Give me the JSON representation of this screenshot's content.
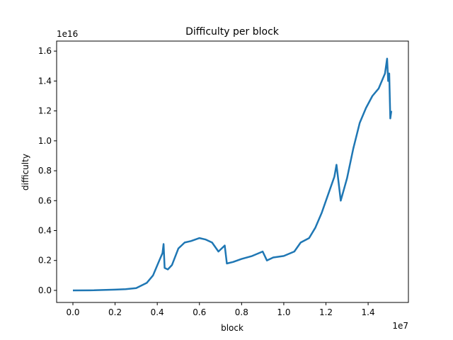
{
  "chart_data": {
    "type": "line",
    "title": "Difficulty per block",
    "x_label": "block",
    "y_label": "difficulty",
    "x_offset_label": "1e7",
    "y_offset_label": "1e16",
    "x": [
      0,
      0.1,
      0.2,
      0.25,
      0.3,
      0.35,
      0.38,
      0.41,
      0.425,
      0.43,
      0.435,
      0.45,
      0.47,
      0.5,
      0.53,
      0.56,
      0.6,
      0.63,
      0.66,
      0.69,
      0.72,
      0.73,
      0.76,
      0.8,
      0.85,
      0.9,
      0.92,
      0.95,
      1.0,
      1.05,
      1.08,
      1.12,
      1.15,
      1.18,
      1.21,
      1.24,
      1.25,
      1.27,
      1.3,
      1.33,
      1.36,
      1.39,
      1.42,
      1.45,
      1.48,
      1.49,
      1.495,
      1.5,
      1.505,
      1.51
    ],
    "series": [
      {
        "name": "difficulty",
        "color": "#1f77b4",
        "values": [
          0,
          0.001,
          0.005,
          0.008,
          0.015,
          0.05,
          0.1,
          0.2,
          0.25,
          0.31,
          0.15,
          0.14,
          0.17,
          0.28,
          0.32,
          0.33,
          0.35,
          0.34,
          0.32,
          0.26,
          0.3,
          0.18,
          0.19,
          0.21,
          0.23,
          0.26,
          0.2,
          0.22,
          0.23,
          0.26,
          0.32,
          0.35,
          0.42,
          0.52,
          0.64,
          0.76,
          0.84,
          0.6,
          0.75,
          0.95,
          1.12,
          1.22,
          1.3,
          1.35,
          1.45,
          1.55,
          1.4,
          1.45,
          1.15,
          1.2
        ]
      }
    ],
    "xlim": [
      -0.0772,
      1.591
    ],
    "ylim": [
      -0.0807,
      1.667
    ],
    "xticks": [
      {
        "value": 0,
        "label": "0.0"
      },
      0.2,
      0.4,
      0.6,
      0.8,
      {
        "value": 1,
        "label": "1.0"
      },
      1.2,
      1.4
    ],
    "yticks": [
      {
        "value": 0,
        "label": "0.0"
      },
      0.2,
      0.4,
      0.6,
      0.8,
      {
        "value": 1,
        "label": "1.0"
      },
      1.2,
      1.4,
      1.6
    ]
  }
}
